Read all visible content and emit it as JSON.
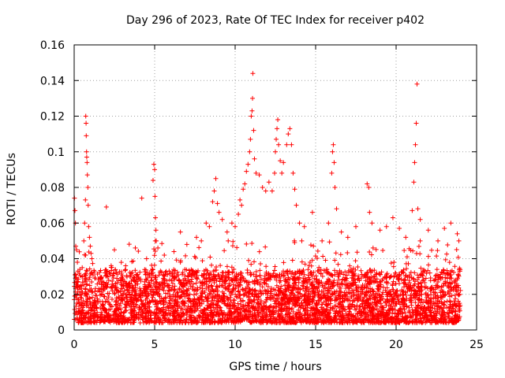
{
  "chart_data": {
    "type": "scatter",
    "title": "Day 296 of 2023, Rate Of TEC Index for receiver p402",
    "xlabel": "GPS time / hours",
    "ylabel": "ROTI / TECUs",
    "xlim": [
      0,
      25
    ],
    "ylim": [
      0,
      0.16
    ],
    "x_ticks": [
      0,
      5,
      10,
      15,
      20,
      25
    ],
    "x_tick_labels": [
      "0",
      "5",
      "10",
      "15",
      "20",
      "25"
    ],
    "y_ticks": [
      0,
      0.02,
      0.04,
      0.06,
      0.08,
      0.1,
      0.12,
      0.14,
      0.16
    ],
    "y_tick_labels": [
      "0",
      "0.02",
      "0.04",
      "0.06",
      "0.08",
      "0.1",
      "0.12",
      "0.14",
      "0.16"
    ],
    "grid": true,
    "marker": "+",
    "series": [
      {
        "name": "p402",
        "color": "#ff0000",
        "points": [
          [
            0.02,
            0.074
          ],
          [
            0.05,
            0.067
          ],
          [
            0.08,
            0.06
          ],
          [
            0.1,
            0.047
          ],
          [
            0.15,
            0.045
          ],
          [
            0.2,
            0.038
          ],
          [
            0.5,
            0.035
          ],
          [
            0.6,
            0.05
          ],
          [
            0.65,
            0.06
          ],
          [
            0.7,
            0.073
          ],
          [
            0.72,
            0.12
          ],
          [
            0.74,
            0.116
          ],
          [
            0.75,
            0.109
          ],
          [
            0.77,
            0.1
          ],
          [
            0.78,
            0.097
          ],
          [
            0.8,
            0.094
          ],
          [
            0.82,
            0.087
          ],
          [
            0.85,
            0.08
          ],
          [
            0.87,
            0.07
          ],
          [
            0.9,
            0.058
          ],
          [
            0.95,
            0.052
          ],
          [
            1.0,
            0.047
          ],
          [
            1.05,
            0.043
          ],
          [
            1.1,
            0.04
          ],
          [
            2.0,
            0.069
          ],
          [
            2.5,
            0.045
          ],
          [
            3.2,
            0.036
          ],
          [
            3.8,
            0.046
          ],
          [
            4.2,
            0.074
          ],
          [
            4.5,
            0.04
          ],
          [
            4.9,
            0.084
          ],
          [
            4.95,
            0.093
          ],
          [
            5.0,
            0.09
          ],
          [
            5.02,
            0.075
          ],
          [
            5.05,
            0.063
          ],
          [
            5.08,
            0.056
          ],
          [
            5.1,
            0.05
          ],
          [
            5.2,
            0.046
          ],
          [
            5.6,
            0.042
          ],
          [
            6.2,
            0.044
          ],
          [
            6.6,
            0.055
          ],
          [
            7.0,
            0.048
          ],
          [
            7.6,
            0.052
          ],
          [
            7.9,
            0.05
          ],
          [
            8.2,
            0.06
          ],
          [
            8.4,
            0.058
          ],
          [
            8.6,
            0.072
          ],
          [
            8.7,
            0.078
          ],
          [
            8.8,
            0.085
          ],
          [
            8.9,
            0.071
          ],
          [
            9.0,
            0.066
          ],
          [
            9.2,
            0.062
          ],
          [
            9.5,
            0.055
          ],
          [
            9.8,
            0.06
          ],
          [
            10.0,
            0.058
          ],
          [
            10.2,
            0.065
          ],
          [
            10.3,
            0.073
          ],
          [
            10.4,
            0.07
          ],
          [
            10.5,
            0.079
          ],
          [
            10.6,
            0.082
          ],
          [
            10.7,
            0.089
          ],
          [
            10.8,
            0.093
          ],
          [
            10.9,
            0.1
          ],
          [
            10.95,
            0.107
          ],
          [
            11.0,
            0.12
          ],
          [
            11.05,
            0.123
          ],
          [
            11.08,
            0.13
          ],
          [
            11.1,
            0.144
          ],
          [
            11.15,
            0.112
          ],
          [
            11.2,
            0.096
          ],
          [
            11.3,
            0.088
          ],
          [
            11.5,
            0.087
          ],
          [
            11.7,
            0.08
          ],
          [
            11.9,
            0.078
          ],
          [
            12.1,
            0.083
          ],
          [
            12.3,
            0.078
          ],
          [
            12.45,
            0.088
          ],
          [
            12.5,
            0.1
          ],
          [
            12.55,
            0.107
          ],
          [
            12.6,
            0.113
          ],
          [
            12.65,
            0.118
          ],
          [
            12.7,
            0.104
          ],
          [
            12.8,
            0.095
          ],
          [
            12.9,
            0.088
          ],
          [
            13.0,
            0.094
          ],
          [
            13.2,
            0.104
          ],
          [
            13.3,
            0.11
          ],
          [
            13.4,
            0.113
          ],
          [
            13.5,
            0.104
          ],
          [
            13.6,
            0.088
          ],
          [
            13.7,
            0.079
          ],
          [
            13.8,
            0.07
          ],
          [
            14.0,
            0.06
          ],
          [
            14.3,
            0.058
          ],
          [
            14.8,
            0.066
          ],
          [
            15.4,
            0.05
          ],
          [
            15.8,
            0.06
          ],
          [
            16.0,
            0.088
          ],
          [
            16.05,
            0.1
          ],
          [
            16.1,
            0.104
          ],
          [
            16.15,
            0.094
          ],
          [
            16.2,
            0.08
          ],
          [
            16.3,
            0.068
          ],
          [
            16.6,
            0.055
          ],
          [
            17.0,
            0.052
          ],
          [
            17.5,
            0.058
          ],
          [
            18.2,
            0.082
          ],
          [
            18.3,
            0.08
          ],
          [
            18.35,
            0.066
          ],
          [
            18.5,
            0.06
          ],
          [
            19.0,
            0.056
          ],
          [
            19.4,
            0.058
          ],
          [
            19.8,
            0.063
          ],
          [
            20.2,
            0.057
          ],
          [
            20.6,
            0.052
          ],
          [
            21.0,
            0.067
          ],
          [
            21.1,
            0.083
          ],
          [
            21.15,
            0.094
          ],
          [
            21.2,
            0.104
          ],
          [
            21.25,
            0.116
          ],
          [
            21.3,
            0.138
          ],
          [
            21.35,
            0.068
          ],
          [
            21.5,
            0.062
          ],
          [
            22.0,
            0.056
          ],
          [
            22.6,
            0.05
          ],
          [
            23.0,
            0.057
          ],
          [
            23.4,
            0.06
          ],
          [
            23.8,
            0.054
          ],
          [
            23.9,
            0.05
          ]
        ]
      }
    ]
  }
}
